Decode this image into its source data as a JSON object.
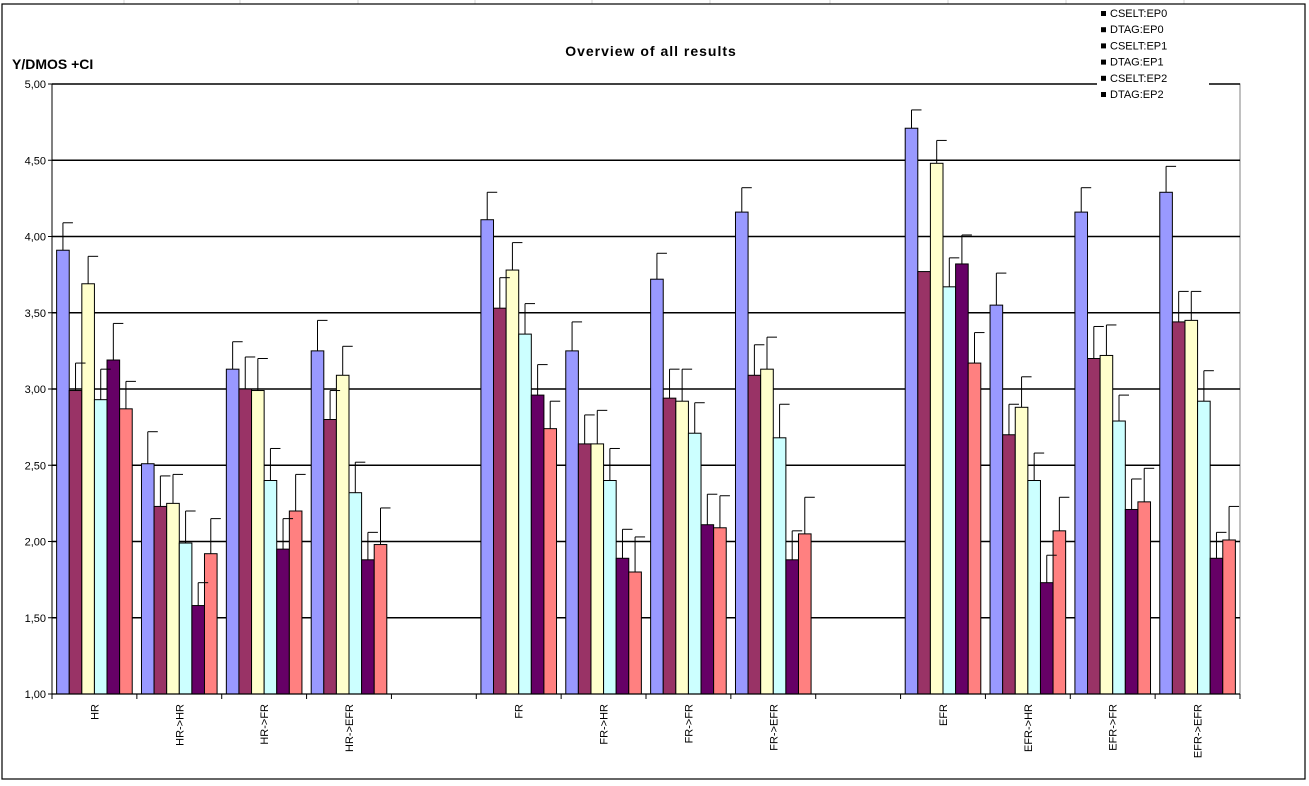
{
  "colors": {
    "CSELT:EP0": "#9999ff",
    "DTAG:EP0": "#993366",
    "CSELT:EP1": "#ffffcc",
    "DTAG:EP1": "#ccffff",
    "CSELT:EP2": "#660066",
    "DTAG:EP2": "#ff8080"
  },
  "chart_data": {
    "type": "bar",
    "title": "Overview of all results",
    "ylabel": "Y/DMOS +CI",
    "xlabel": "",
    "ylim": [
      1.0,
      5.0
    ],
    "yticks": [
      "1,00",
      "1,50",
      "2,00",
      "2,50",
      "3,00",
      "3,50",
      "4,00",
      "4,50",
      "5,00"
    ],
    "grid": true,
    "legend_position": "top-right",
    "categories": [
      "HR",
      "HR->HR",
      "HR->FR",
      "HR->EFR",
      "",
      "FR",
      "FR->HR",
      "FR->FR",
      "FR->EFR",
      "",
      "EFR",
      "EFR->HR",
      "EFR->FR",
      "EFR->EFR"
    ],
    "series": [
      {
        "name": "CSELT:EP0",
        "values": [
          3.91,
          2.51,
          3.13,
          3.25,
          null,
          4.11,
          3.25,
          3.72,
          4.16,
          null,
          4.71,
          3.55,
          4.16,
          4.29
        ],
        "ci_upper": [
          4.09,
          2.72,
          3.31,
          3.45,
          null,
          4.29,
          3.44,
          3.89,
          4.32,
          null,
          4.83,
          3.76,
          4.32,
          4.46
        ]
      },
      {
        "name": "DTAG:EP0",
        "values": [
          2.99,
          2.23,
          3.0,
          2.8,
          null,
          3.53,
          2.64,
          2.94,
          3.09,
          null,
          3.77,
          2.7,
          3.2,
          3.44
        ],
        "ci_upper": [
          3.17,
          2.43,
          3.21,
          2.99,
          null,
          3.73,
          2.83,
          3.13,
          3.29,
          null,
          null,
          2.9,
          3.41,
          3.64
        ]
      },
      {
        "name": "CSELT:EP1",
        "values": [
          3.69,
          2.25,
          2.99,
          3.09,
          null,
          3.78,
          2.64,
          2.92,
          3.13,
          null,
          4.48,
          2.88,
          3.22,
          3.45
        ],
        "ci_upper": [
          3.87,
          2.44,
          3.2,
          3.28,
          null,
          3.96,
          2.86,
          3.13,
          3.34,
          null,
          4.63,
          3.08,
          3.42,
          3.64
        ]
      },
      {
        "name": "DTAG:EP1",
        "values": [
          2.93,
          1.99,
          2.4,
          2.32,
          null,
          3.36,
          2.4,
          2.71,
          2.68,
          null,
          3.67,
          2.4,
          2.79,
          2.92
        ],
        "ci_upper": [
          3.13,
          2.2,
          2.61,
          2.52,
          null,
          3.56,
          2.61,
          2.91,
          2.9,
          null,
          3.86,
          2.58,
          2.96,
          3.12
        ]
      },
      {
        "name": "CSELT:EP2",
        "values": [
          3.19,
          1.58,
          1.95,
          1.88,
          null,
          2.96,
          1.89,
          2.11,
          1.88,
          null,
          3.82,
          1.73,
          2.21,
          1.89
        ],
        "ci_upper": [
          3.43,
          1.73,
          2.15,
          2.06,
          null,
          3.16,
          2.08,
          2.31,
          2.07,
          null,
          4.01,
          1.91,
          2.41,
          2.06
        ]
      },
      {
        "name": "DTAG:EP2",
        "values": [
          2.87,
          1.92,
          2.2,
          1.98,
          null,
          2.74,
          1.8,
          2.09,
          2.05,
          null,
          3.17,
          2.07,
          2.26,
          2.01
        ],
        "ci_upper": [
          3.05,
          2.15,
          2.44,
          2.22,
          null,
          2.92,
          2.03,
          2.3,
          2.29,
          null,
          3.37,
          2.29,
          2.48,
          2.23
        ]
      }
    ]
  }
}
